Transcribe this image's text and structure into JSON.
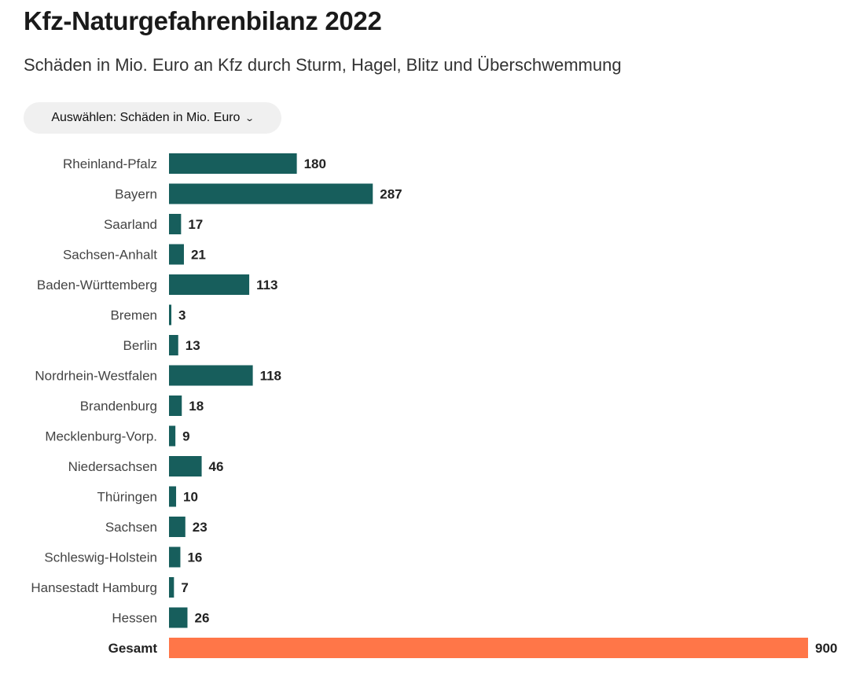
{
  "header": {
    "title": "Kfz-Naturgefahrenbilanz 2022",
    "subtitle": "Schäden in Mio. Euro an Kfz durch Sturm, Hagel, Blitz und Überschwemmung"
  },
  "selector": {
    "label": "Auswählen: Schäden in Mio. Euro",
    "icon": "chevron-down-icon"
  },
  "chart_data": {
    "type": "bar",
    "orientation": "horizontal",
    "title": "Kfz-Naturgefahrenbilanz 2022",
    "subtitle": "Schäden in Mio. Euro an Kfz durch Sturm, Hagel, Blitz und Überschwemmung",
    "xlabel": "",
    "ylabel": "",
    "xlim": [
      0,
      900
    ],
    "grid": false,
    "categories": [
      "Rheinland-Pfalz",
      "Bayern",
      "Saarland",
      "Sachsen-Anhalt",
      "Baden-Württemberg",
      "Bremen",
      "Berlin",
      "Nordrhein-Westfalen",
      "Brandenburg",
      "Mecklenburg-Vorp.",
      "Niedersachsen",
      "Thüringen",
      "Sachsen",
      "Schleswig-Holstein",
      "Hansestadt Hamburg",
      "Hessen",
      "Gesamt"
    ],
    "values": [
      180,
      287,
      17,
      21,
      113,
      3,
      13,
      118,
      18,
      9,
      46,
      10,
      23,
      16,
      7,
      26,
      900
    ],
    "colors": {
      "default": "#175e5c",
      "total": "#ff7648"
    }
  }
}
